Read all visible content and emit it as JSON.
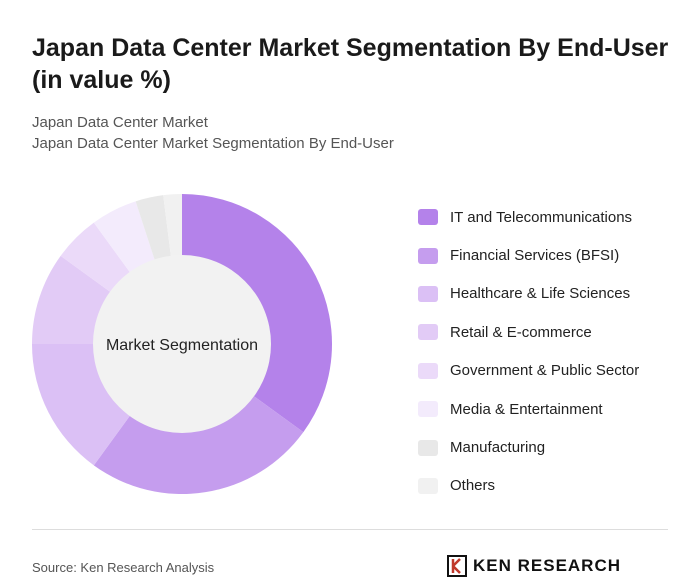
{
  "title": "Japan Data Center Market Segmentation By End-User (in value %)",
  "breadcrumb": [
    "Japan Data Center Market",
    "Japan Data Center Market Segmentation By End-User"
  ],
  "source": "Source: Ken Research Analysis",
  "logo": "KEN RESEARCH",
  "chart_data": {
    "type": "pie",
    "variant": "donut",
    "center_label": "Market Segmentation",
    "legend_position": "right",
    "categories": [
      "IT and Telecommunications",
      "Financial Services (BFSI)",
      "Healthcare & Life Sciences",
      "Retail & E-commerce",
      "Government & Public Sector",
      "Media & Entertainment",
      "Manufacturing",
      "Others"
    ],
    "values": [
      35,
      25,
      15,
      10,
      5,
      5,
      3,
      2
    ],
    "colors": [
      "#b482ea",
      "#c59dee",
      "#dbc0f5",
      "#e2cbf6",
      "#ebdaf9",
      "#f3ebfc",
      "#e8e8e8",
      "#f1f1f1"
    ]
  }
}
